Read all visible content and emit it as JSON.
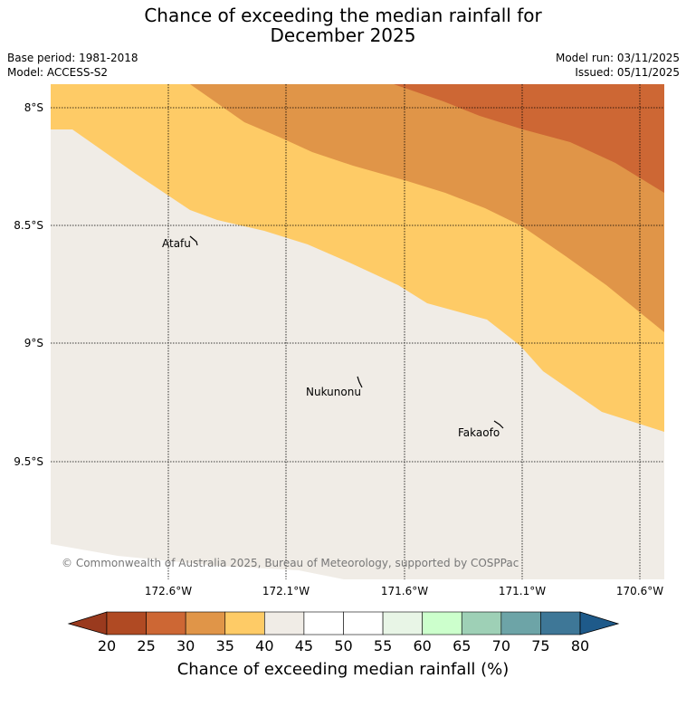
{
  "title_line1": "Chance of exceeding the median rainfall for",
  "title_line2": "December 2025",
  "base_period": "Base period: 1981-2018",
  "model": "Model: ACCESS-S2",
  "model_run": "Model run: 03/11/2025",
  "issued": "Issued: 05/11/2025",
  "lat_labels": [
    "8°S",
    "8.5°S",
    "9°S",
    "9.5°S"
  ],
  "lon_labels": [
    "172.6°W",
    "172.1°W",
    "171.6°W",
    "171.1°W",
    "170.6°W"
  ],
  "places": [
    {
      "name": "Atafu"
    },
    {
      "name": "Nukunonu"
    },
    {
      "name": "Fakaofo"
    }
  ],
  "copyright": "© Commonwealth of Australia 2025, Bureau of Meteorology, supported by COSPPac",
  "colorbar": {
    "ticks": [
      "20",
      "25",
      "30",
      "35",
      "40",
      "45",
      "50",
      "55",
      "60",
      "65",
      "70",
      "75",
      "80"
    ],
    "colors": [
      "#b04a23",
      "#cd6734",
      "#e09548",
      "#fecb66",
      "#f0ece6",
      "#ffffff",
      "#ffffff",
      "#e8f5e6",
      "#ccffcc",
      "#9ed0b6",
      "#6da4a7",
      "#3e7797"
    ],
    "under_color": "#9a3a1e",
    "over_color": "#1e5a8a",
    "label": "Chance of exceeding median rainfall (%)"
  },
  "colors": {
    "land_bg": "#f0ece6",
    "band_35_40": "#fecb66",
    "band_30_35": "#e09548",
    "band_25_30": "#cd6734"
  }
}
